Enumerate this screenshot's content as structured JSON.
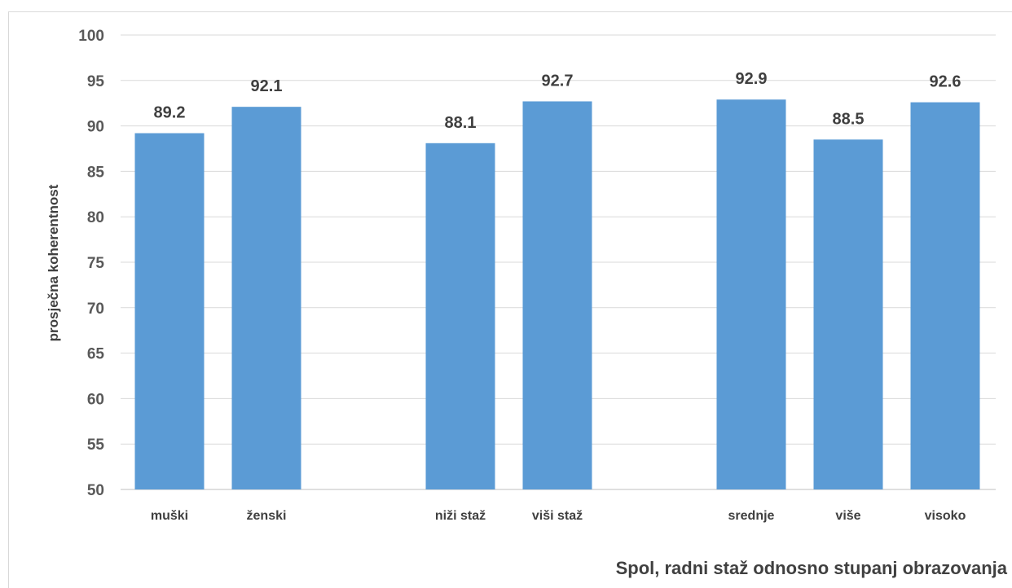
{
  "chart_data": {
    "type": "bar",
    "categories": [
      "muški",
      "ženski",
      "niži staž",
      "viši staž",
      "srednje",
      "više",
      "visoko"
    ],
    "groups": [
      [
        0,
        1
      ],
      [
        2,
        3
      ],
      [
        4,
        5,
        6
      ]
    ],
    "values": [
      89.2,
      92.1,
      88.1,
      92.7,
      92.9,
      88.5,
      92.6
    ],
    "value_labels": [
      "89.2",
      "92.1",
      "88.1",
      "92.7",
      "92.9",
      "88.5",
      "92.6"
    ],
    "ylabel": "prosječna koherentnost",
    "xlabel": "Spol, radni staž odnosno stupanj obrazovanja",
    "ylim": [
      50,
      100
    ],
    "yticks": [
      50,
      55,
      60,
      65,
      70,
      75,
      80,
      85,
      90,
      95,
      100
    ],
    "grid": true,
    "bar_color": "#5b9bd5",
    "legend": "none"
  }
}
